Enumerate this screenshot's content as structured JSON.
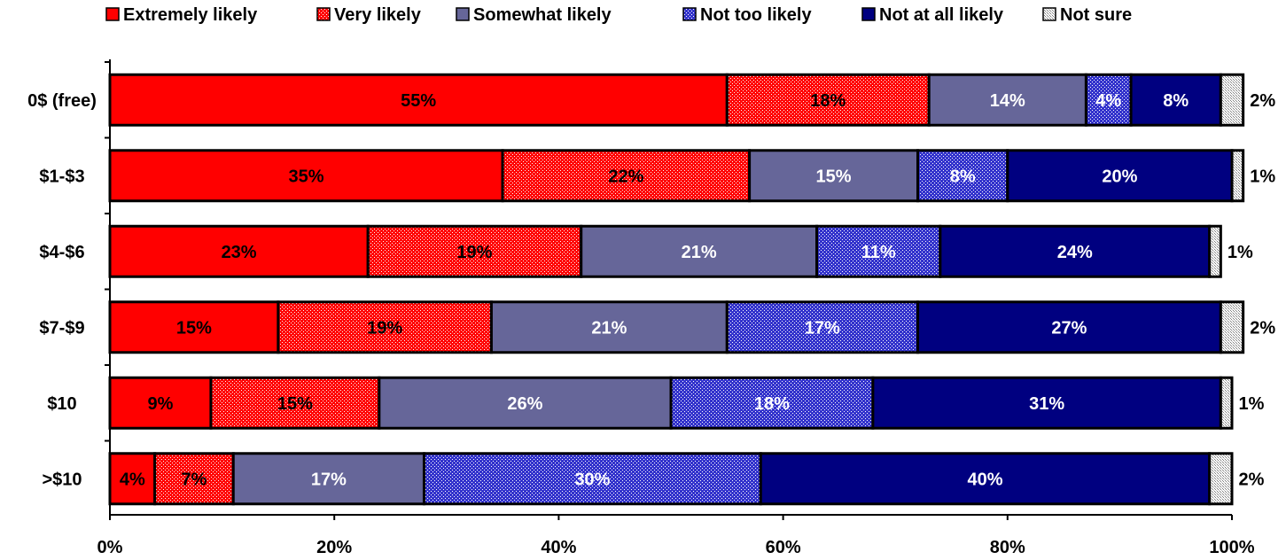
{
  "chart_data": {
    "type": "bar",
    "orientation": "horizontal",
    "stacked": true,
    "percent_stacked": true,
    "legend_position": "top",
    "grid": false,
    "xlim": [
      0,
      100
    ],
    "x_ticks": [
      "0%",
      "20%",
      "40%",
      "60%",
      "80%",
      "100%"
    ],
    "categories": [
      "0$ (free)",
      "$1-$3",
      "$4-$6",
      "$7-$9",
      "$10",
      ">$10"
    ],
    "series": [
      {
        "name": "Extremely likely",
        "color": "#ff0000",
        "pattern": "solid",
        "values": [
          55,
          35,
          23,
          15,
          9,
          4
        ],
        "labels": [
          "55%",
          "35%",
          "23%",
          "15%",
          "9%",
          "4%"
        ]
      },
      {
        "name": "Very likely",
        "color": "#ff0000",
        "pattern": "dotted-light",
        "values": [
          18,
          22,
          19,
          19,
          15,
          7
        ],
        "labels": [
          "18%",
          "22%",
          "19%",
          "19%",
          "15%",
          "7%"
        ]
      },
      {
        "name": "Somewhat likely",
        "color": "#666699",
        "pattern": "solid",
        "values": [
          14,
          15,
          21,
          21,
          26,
          17
        ],
        "labels": [
          "14%",
          "15%",
          "21%",
          "21%",
          "26%",
          "17%"
        ]
      },
      {
        "name": "Not too likely",
        "color": "#3333cc",
        "pattern": "dotted-dark",
        "values": [
          4,
          8,
          11,
          17,
          18,
          30
        ],
        "labels": [
          "4%",
          "8%",
          "11%",
          "17%",
          "18%",
          "30%"
        ]
      },
      {
        "name": "Not at all likely",
        "color": "#000080",
        "pattern": "solid",
        "values": [
          8,
          20,
          24,
          27,
          31,
          40
        ],
        "labels": [
          "8%",
          "20%",
          "24%",
          "27%",
          "31%",
          "40%"
        ]
      },
      {
        "name": "Not sure",
        "color": "#c0c0c0",
        "pattern": "dotted-grey",
        "values": [
          2,
          1,
          1,
          2,
          1,
          2
        ],
        "labels": [
          "2%",
          "1%",
          "1%",
          "2%",
          "1%",
          "2%"
        ]
      }
    ]
  }
}
